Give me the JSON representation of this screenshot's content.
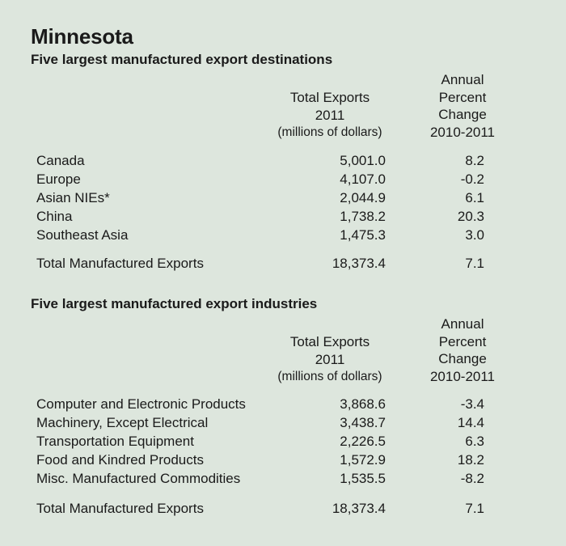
{
  "title": "Minnesota",
  "tables": [
    {
      "heading": "Five largest manufactured export destinations",
      "col1_header": [
        "Total Exports",
        "2011",
        "(millions of dollars)"
      ],
      "col2_header": [
        "Annual",
        "Percent",
        "Change",
        "2010-2011"
      ],
      "rows": [
        {
          "label": "Canada",
          "total": "5,001.0",
          "change": "8.2"
        },
        {
          "label": "Europe",
          "total": "4,107.0",
          "change": "-0.2"
        },
        {
          "label": "Asian NIEs*",
          "total": "2,044.9",
          "change": "6.1"
        },
        {
          "label": "China",
          "total": "1,738.2",
          "change": "20.3"
        },
        {
          "label": "Southeast Asia",
          "total": "1,475.3",
          "change": "3.0"
        }
      ],
      "total_row": {
        "label": "Total Manufactured Exports",
        "total": "18,373.4",
        "change": "7.1"
      }
    },
    {
      "heading": "Five largest manufactured export industries",
      "col1_header": [
        "Total Exports",
        "2011",
        "(millions of dollars)"
      ],
      "col2_header": [
        "Annual",
        "Percent",
        "Change",
        "2010-2011"
      ],
      "rows": [
        {
          "label": "Computer and Electronic Products",
          "total": "3,868.6",
          "change": "-3.4"
        },
        {
          "label": "Machinery, Except Electrical",
          "total": "3,438.7",
          "change": "14.4"
        },
        {
          "label": "Transportation Equipment",
          "total": "2,226.5",
          "change": "6.3"
        },
        {
          "label": "Food and Kindred Products",
          "total": "1,572.9",
          "change": "18.2"
        },
        {
          "label": "Misc. Manufactured Commodities",
          "total": "1,535.5",
          "change": "-8.2"
        }
      ],
      "total_row": {
        "label": "Total Manufactured Exports",
        "total": "18,373.4",
        "change": "7.1"
      }
    }
  ]
}
